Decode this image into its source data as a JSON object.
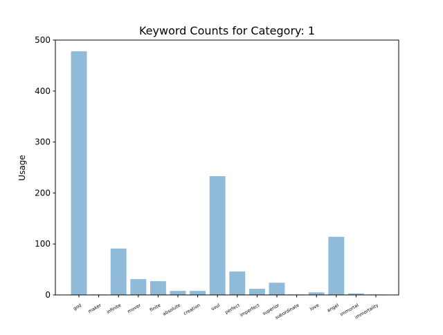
{
  "chart_data": {
    "type": "bar",
    "title": "Keyword Counts for Category: 1",
    "xlabel": "",
    "ylabel": "Usage",
    "categories": [
      "god",
      "maker",
      "infinite",
      "mover",
      "finite",
      "absolute",
      "creation",
      "soul",
      "perfect",
      "imperfect",
      "superior",
      "subordinate",
      "love",
      "angel",
      "immortal",
      "immortality"
    ],
    "values": [
      478,
      1,
      91,
      31,
      27,
      8,
      8,
      233,
      46,
      12,
      24,
      1,
      5,
      114,
      3,
      1
    ],
    "ylim": [
      0,
      500
    ],
    "yticks": [
      0,
      100,
      200,
      300,
      400,
      500
    ],
    "bar_color": "#8fbbd9",
    "grid": false,
    "legend": "none"
  }
}
